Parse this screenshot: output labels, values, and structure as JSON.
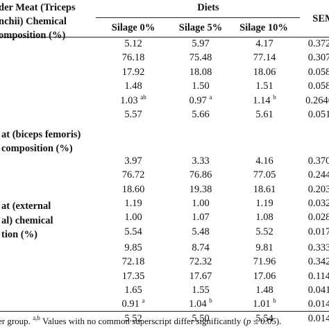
{
  "header": {
    "diets": "Diets",
    "sem": "SEM",
    "columns": [
      "Silage 0%",
      "Silage 5%",
      "Silage 10%"
    ]
  },
  "sections": [
    {
      "title_lines": [
        "der Meat (Triceps",
        "nchii) Chemical",
        "omposition (%)"
      ],
      "rows": [
        {
          "v": [
            "5.12",
            "5.97",
            "4.17"
          ],
          "sup": [
            "",
            "",
            ""
          ],
          "sem": "0.372"
        },
        {
          "v": [
            "76.18",
            "75.48",
            "77.14"
          ],
          "sup": [
            "",
            "",
            ""
          ],
          "sem": "0.307"
        },
        {
          "v": [
            "17.92",
            "18.08",
            "18.06"
          ],
          "sup": [
            "",
            "",
            ""
          ],
          "sem": "0.058"
        },
        {
          "v": [
            "1.48",
            "1.50",
            "1.51"
          ],
          "sup": [
            "",
            "",
            ""
          ],
          "sem": "0.058"
        },
        {
          "v": [
            "1.03",
            "0.97",
            "1.14"
          ],
          "sup": [
            "ab",
            "a",
            "b"
          ],
          "sem": "0.2646"
        },
        {
          "v": [
            "5.57",
            "5.66",
            "5.61"
          ],
          "sup": [
            "",
            "",
            ""
          ],
          "sem": "0.051"
        }
      ]
    },
    {
      "title_lines": [
        "at (biceps femoris)",
        "composition (%)"
      ],
      "rows": [
        {
          "v": [
            "3.97",
            "3.33",
            "4.16"
          ],
          "sup": [
            "",
            "",
            ""
          ],
          "sem": "0.370"
        },
        {
          "v": [
            "76.72",
            "76.86",
            "77.05"
          ],
          "sup": [
            "",
            "",
            ""
          ],
          "sem": "0.244"
        },
        {
          "v": [
            "18.60",
            "19.38",
            "18.61"
          ],
          "sup": [
            "",
            "",
            ""
          ],
          "sem": "0.203"
        },
        {
          "v": [
            "1.19",
            "1.00",
            "1.19"
          ],
          "sup": [
            "",
            "",
            ""
          ],
          "sem": "0.032"
        },
        {
          "v": [
            "1.00",
            "1.07",
            "1.08"
          ],
          "sup": [
            "",
            "",
            ""
          ],
          "sem": "0.028"
        },
        {
          "v": [
            "5.54",
            "5.48",
            "5.52"
          ],
          "sup": [
            "",
            "",
            ""
          ],
          "sem": "0.017"
        }
      ]
    },
    {
      "title_lines": [
        "at (external",
        "al) chemical",
        "tion (%)"
      ],
      "rows": [
        {
          "v": [
            "9.85",
            "8.74",
            "9.81"
          ],
          "sup": [
            "",
            "",
            ""
          ],
          "sem": "0.333"
        },
        {
          "v": [
            "72.18",
            "72.32",
            "71.96"
          ],
          "sup": [
            "",
            "",
            ""
          ],
          "sem": "0.342"
        },
        {
          "v": [
            "17.35",
            "17.67",
            "17.06"
          ],
          "sup": [
            "",
            "",
            ""
          ],
          "sem": "0.114"
        },
        {
          "v": [
            "1.65",
            "1.55",
            "1.48"
          ],
          "sup": [
            "",
            "",
            ""
          ],
          "sem": "0.041"
        },
        {
          "v": [
            "0.91",
            "1.04",
            "1.01"
          ],
          "sup": [
            "a",
            "b",
            "b"
          ],
          "sem": "0.014"
        },
        {
          "v": [
            "5.52",
            "5.50",
            "5.54"
          ],
          "sup": [
            "",
            "",
            ""
          ],
          "sem": "0.014"
        }
      ]
    }
  ],
  "footnote": {
    "before": "er group. ",
    "sup": "a,b",
    "middle": " Values with no common superscript differ significantly (",
    "italic": "p",
    "after": " ≤ 0.05)."
  }
}
